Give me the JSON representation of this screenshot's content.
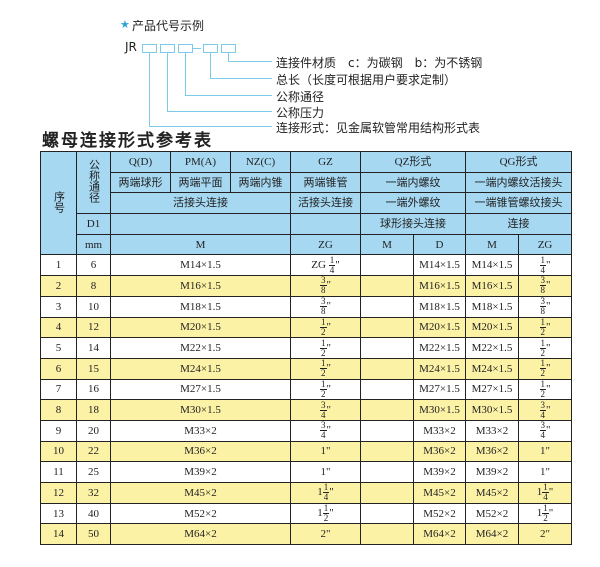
{
  "example": {
    "title": "产品代号示例",
    "star_icon": "star-icon",
    "code_prefix": "JR",
    "labels": [
      "连接件材质　c：为碳钢　b：为不锈钢",
      "总长（长度可根据用户要求定制）",
      "公称通径",
      "公称压力",
      "连接形式：见金属软管常用结构形式表"
    ]
  },
  "table_title": "螺母连接形式参考表",
  "header": {
    "seq": "序号",
    "nominal": "公称通径",
    "q": "Q(D)",
    "pm": "PM(A)",
    "nz": "NZ(C)",
    "gz": "GZ",
    "qz": "QZ形式",
    "qg": "QG形式",
    "q2": "两端球形",
    "pm2": "两端平面",
    "nz2": "两端内锥",
    "gz2": "两端锥管",
    "qz2": "一端内螺纹",
    "qg2": "一端内螺纹活接头",
    "conn1": "活接头连接",
    "gz3": "活接头连接",
    "qz3": "一端外螺纹",
    "qg3": "一端锥管螺纹接头",
    "d1": "D1",
    "qz4": "球形接头连接",
    "qg4": "连接",
    "mm": "mm",
    "m": "M",
    "zg": "ZG",
    "qzm": "M",
    "qzd": "D",
    "qgm": "M",
    "qgzg": "ZG"
  },
  "colors": {
    "header": "#a6d8f2",
    "alt_row": "#fcf2a6",
    "diagram_line": "#7ccbe8"
  },
  "rows": [
    {
      "no": "1",
      "d1": "6",
      "m": "M14×1.5",
      "zg": {
        "pre": "ZG",
        "w": "",
        "n": "1",
        "d": "4"
      },
      "qzm": "",
      "qzd": "M14×1.5",
      "qgm": "M14×1.5",
      "qgzg": {
        "w": "",
        "n": "1",
        "d": "4"
      }
    },
    {
      "no": "2",
      "d1": "8",
      "m": "M16×1.5",
      "zg": {
        "pre": "",
        "w": "",
        "n": "3",
        "d": "8"
      },
      "qzm": "",
      "qzd": "M16×1.5",
      "qgm": "M16×1.5",
      "qgzg": {
        "w": "",
        "n": "3",
        "d": "8"
      }
    },
    {
      "no": "3",
      "d1": "10",
      "m": "M18×1.5",
      "zg": {
        "pre": "",
        "w": "",
        "n": "3",
        "d": "8"
      },
      "qzm": "",
      "qzd": "M18×1.5",
      "qgm": "M18×1.5",
      "qgzg": {
        "w": "",
        "n": "3",
        "d": "8"
      }
    },
    {
      "no": "4",
      "d1": "12",
      "m": "M20×1.5",
      "zg": {
        "pre": "",
        "w": "",
        "n": "1",
        "d": "2"
      },
      "qzm": "",
      "qzd": "M20×1.5",
      "qgm": "M20×1.5",
      "qgzg": {
        "w": "",
        "n": "1",
        "d": "2"
      }
    },
    {
      "no": "5",
      "d1": "14",
      "m": "M22×1.5",
      "zg": {
        "pre": "",
        "w": "",
        "n": "1",
        "d": "2"
      },
      "qzm": "",
      "qzd": "M22×1.5",
      "qgm": "M22×1.5",
      "qgzg": {
        "w": "",
        "n": "1",
        "d": "2"
      }
    },
    {
      "no": "6",
      "d1": "15",
      "m": "M24×1.5",
      "zg": {
        "pre": "",
        "w": "",
        "n": "1",
        "d": "2"
      },
      "qzm": "",
      "qzd": "M24×1.5",
      "qgm": "M24×1.5",
      "qgzg": {
        "w": "",
        "n": "1",
        "d": "2"
      }
    },
    {
      "no": "7",
      "d1": "16",
      "m": "M27×1.5",
      "zg": {
        "pre": "",
        "w": "",
        "n": "1",
        "d": "2"
      },
      "qzm": "",
      "qzd": "M27×1.5",
      "qgm": "M27×1.5",
      "qgzg": {
        "w": "",
        "n": "1",
        "d": "2"
      }
    },
    {
      "no": "8",
      "d1": "18",
      "m": "M30×1.5",
      "zg": {
        "pre": "",
        "w": "",
        "n": "3",
        "d": "4"
      },
      "qzm": "",
      "qzd": "M30×1.5",
      "qgm": "M30×1.5",
      "qgzg": {
        "w": "",
        "n": "3",
        "d": "4"
      }
    },
    {
      "no": "9",
      "d1": "20",
      "m": "M33×2",
      "zg": {
        "pre": "",
        "w": "",
        "n": "3",
        "d": "4"
      },
      "qzm": "",
      "qzd": "M33×2",
      "qgm": "M33×2",
      "qgzg": {
        "w": "",
        "n": "3",
        "d": "4"
      }
    },
    {
      "no": "10",
      "d1": "22",
      "m": "M36×2",
      "zg": {
        "pre": "",
        "w": "1",
        "n": "",
        "d": ""
      },
      "qzm": "",
      "qzd": "M36×2",
      "qgm": "M36×2",
      "qgzg": {
        "w": "1",
        "n": "",
        "d": ""
      }
    },
    {
      "no": "11",
      "d1": "25",
      "m": "M39×2",
      "zg": {
        "pre": "",
        "w": "1",
        "n": "",
        "d": ""
      },
      "qzm": "",
      "qzd": "M39×2",
      "qgm": "M39×2",
      "qgzg": {
        "w": "1",
        "n": "",
        "d": ""
      }
    },
    {
      "no": "12",
      "d1": "32",
      "m": "M45×2",
      "zg": {
        "pre": "",
        "w": "1",
        "n": "1",
        "d": "4"
      },
      "qzm": "",
      "qzd": "M45×2",
      "qgm": "M45×2",
      "qgzg": {
        "w": "1",
        "n": "1",
        "d": "4"
      }
    },
    {
      "no": "13",
      "d1": "40",
      "m": "M52×2",
      "zg": {
        "pre": "",
        "w": "1",
        "n": "1",
        "d": "2"
      },
      "qzm": "",
      "qzd": "M52×2",
      "qgm": "M52×2",
      "qgzg": {
        "w": "1",
        "n": "1",
        "d": "2"
      }
    },
    {
      "no": "14",
      "d1": "50",
      "m": "M64×2",
      "zg": {
        "pre": "",
        "w": "2",
        "n": "",
        "d": ""
      },
      "qzm": "",
      "qzd": "M64×2",
      "qgm": "M64×2",
      "qgzg": {
        "w": "2",
        "n": "",
        "d": ""
      }
    }
  ]
}
